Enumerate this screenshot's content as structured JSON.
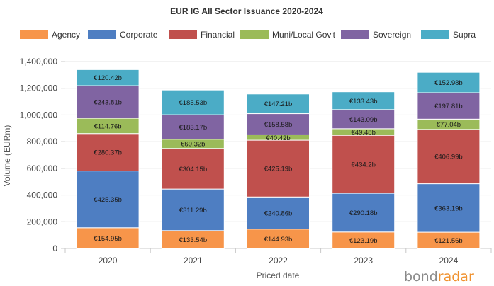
{
  "chart_data": {
    "type": "bar",
    "stacked": true,
    "title": "EUR IG All Sector Issuance 2020-2024",
    "xlabel": "Priced date",
    "ylabel": "Volume (EURm)",
    "ylim": [
      0,
      1400000
    ],
    "yticks": [
      0,
      200000,
      400000,
      600000,
      800000,
      1000000,
      1200000,
      1400000
    ],
    "ytick_labels": [
      "0",
      "200,000",
      "400,000",
      "600,000",
      "800,000",
      "1,000,000",
      "1,200,000",
      "1,400,000"
    ],
    "grid": true,
    "legend_position": "top",
    "categories": [
      "2020",
      "2021",
      "2022",
      "2023",
      "2024"
    ],
    "series": [
      {
        "name": "Agency",
        "color": "#f7954a",
        "values": [
          154.95,
          133.54,
          144.93,
          123.19,
          121.56
        ],
        "labels": [
          "€154.95b",
          "€133.54b",
          "€144.93b",
          "€123.19b",
          "€121.56b"
        ]
      },
      {
        "name": "Corporate",
        "color": "#4e7ec2",
        "values": [
          425.35,
          311.29,
          240.86,
          290.18,
          363.19
        ],
        "labels": [
          "€425.35b",
          "€311.29b",
          "€240.86b",
          "€290.18b",
          "€363.19b"
        ]
      },
      {
        "name": "Financial",
        "color": "#c0504d",
        "values": [
          280.37,
          304.15,
          425.19,
          434.2,
          406.99
        ],
        "labels": [
          "€280.37b",
          "€304.15b",
          "€425.19b",
          "€434.2b",
          "€406.99b"
        ]
      },
      {
        "name": "Muni/Local Gov't",
        "color": "#9bbb59",
        "values": [
          114.76,
          69.32,
          40.42,
          49.48,
          77.04
        ],
        "labels": [
          "€114.76b",
          "€69.32b",
          "€40.42b",
          "€49.48b",
          "€77.04b"
        ]
      },
      {
        "name": "Sovereign",
        "color": "#8064a2",
        "values": [
          243.81,
          183.17,
          158.58,
          143.09,
          197.81
        ],
        "labels": [
          "€243.81b",
          "€183.17b",
          "€158.58b",
          "€143.09b",
          "€197.81b"
        ]
      },
      {
        "name": "Supra",
        "color": "#4bacc6",
        "values": [
          120.42,
          185.53,
          147.21,
          133.43,
          152.98
        ],
        "labels": [
          "€120.42b",
          "€185.53b",
          "€147.21b",
          "€133.43b",
          "€152.98b"
        ]
      }
    ]
  },
  "watermark": {
    "part1": "bond",
    "part2": "radar"
  }
}
